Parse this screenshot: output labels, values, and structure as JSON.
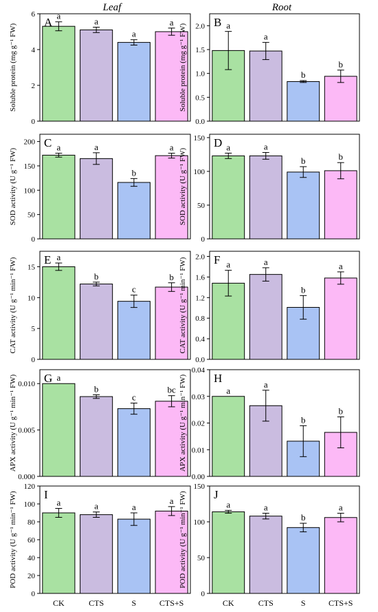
{
  "column_headers": [
    "Leaf",
    "Root"
  ],
  "categories": [
    "CK",
    "CTS",
    "S",
    "CTS+S"
  ],
  "bar_colors": [
    "#a9e1a2",
    "#cabce0",
    "#a9c3f4",
    "#fcb9f6"
  ],
  "chart_data": [
    {
      "type": "bar",
      "panel": "A",
      "ylabel": "Soluble protein (mg g⁻¹ FW)",
      "ylim": [
        0,
        6
      ],
      "yticks": [
        "0",
        "2",
        "4",
        "6"
      ],
      "categories": [
        "CK",
        "CTS",
        "S",
        "CTS+S"
      ],
      "values": [
        5.3,
        5.1,
        4.4,
        5.0
      ],
      "errors": [
        0.25,
        0.15,
        0.15,
        0.2
      ],
      "letters": [
        "a",
        "a",
        "a",
        "a"
      ]
    },
    {
      "type": "bar",
      "panel": "B",
      "ylabel": "Soluble protein (mg g⁻¹ FW)",
      "ylim": [
        0,
        2.25
      ],
      "yticks": [
        "0.0",
        "0.5",
        "1.0",
        "1.5",
        "2.0"
      ],
      "categories": [
        "CK",
        "CTS",
        "S",
        "CTS+S"
      ],
      "values": [
        1.48,
        1.47,
        0.83,
        0.94
      ],
      "errors": [
        0.4,
        0.18,
        0.02,
        0.13
      ],
      "letters": [
        "a",
        "a",
        "b",
        "b"
      ]
    },
    {
      "type": "bar",
      "panel": "C",
      "ylabel": "SOD activity (U g⁻¹ FW)",
      "ylim": [
        0,
        215
      ],
      "yticks": [
        "0",
        "50",
        "100",
        "150",
        "200"
      ],
      "categories": [
        "CK",
        "CTS",
        "S",
        "CTS+S"
      ],
      "values": [
        172,
        165,
        116,
        171
      ],
      "errors": [
        4,
        12,
        8,
        5
      ],
      "letters": [
        "a",
        "a",
        "b",
        "a"
      ]
    },
    {
      "type": "bar",
      "panel": "D",
      "ylabel": "SOD activity (U g⁻¹ FW)",
      "ylim": [
        0,
        155
      ],
      "yticks": [
        "0",
        "50",
        "100",
        "150"
      ],
      "categories": [
        "CK",
        "CTS",
        "S",
        "CTS+S"
      ],
      "values": [
        123,
        123,
        99,
        101
      ],
      "errors": [
        4,
        5,
        8,
        12
      ],
      "letters": [
        "a",
        "a",
        "b",
        "b"
      ]
    },
    {
      "type": "bar",
      "panel": "E",
      "ylabel": "CAT activity (U g⁻¹ min⁻¹ FW)",
      "ylim": [
        0,
        17.5
      ],
      "yticks": [
        "0",
        "5",
        "10",
        "15"
      ],
      "categories": [
        "CK",
        "CTS",
        "S",
        "CTS+S"
      ],
      "values": [
        15.0,
        12.2,
        9.4,
        11.7
      ],
      "errors": [
        0.6,
        0.3,
        1.0,
        0.7
      ],
      "letters": [
        "a",
        "b",
        "c",
        "b"
      ]
    },
    {
      "type": "bar",
      "panel": "F",
      "ylabel": "CAT activity (U g⁻¹ min⁻¹ FW)",
      "ylim": [
        0,
        2.1
      ],
      "yticks": [
        "0.0",
        "0.4",
        "0.8",
        "1.2",
        "1.6",
        "2.0"
      ],
      "categories": [
        "CK",
        "CTS",
        "S",
        "CTS+S"
      ],
      "values": [
        1.48,
        1.65,
        1.01,
        1.58
      ],
      "errors": [
        0.25,
        0.13,
        0.23,
        0.12
      ],
      "letters": [
        "a",
        "a",
        "b",
        "a"
      ]
    },
    {
      "type": "bar",
      "panel": "G",
      "ylabel": "APX activity (U g⁻¹ min⁻¹ FW)",
      "ylim": [
        0,
        0.0115
      ],
      "yticks": [
        "0.000",
        "0.005",
        "0.010"
      ],
      "categories": [
        "CK",
        "CTS",
        "S",
        "CTS+S"
      ],
      "values": [
        0.01,
        0.0086,
        0.0073,
        0.0081
      ],
      "errors": [
        0.0,
        0.0002,
        0.0006,
        0.0006
      ],
      "letters": [
        "a",
        "b",
        "c",
        "bc"
      ]
    },
    {
      "type": "bar",
      "panel": "H",
      "ylabel": "APX activity (U g⁻¹ min⁻¹ FW)",
      "ylim": [
        0,
        0.04
      ],
      "yticks": [
        "0.00",
        "0.01",
        "0.02",
        "0.03",
        "0.04"
      ],
      "categories": [
        "CK",
        "CTS",
        "S",
        "CTS+S"
      ],
      "values": [
        0.03,
        0.0265,
        0.0132,
        0.0165
      ],
      "errors": [
        0.0,
        0.0058,
        0.0058,
        0.0058
      ],
      "letters": [
        "a",
        "a",
        "b",
        "b"
      ]
    },
    {
      "type": "bar",
      "panel": "I",
      "ylabel": "POD activity (U g⁻¹ min⁻¹ FW)",
      "ylim": [
        0,
        120
      ],
      "yticks": [
        "0",
        "20",
        "40",
        "60",
        "80",
        "100",
        "120"
      ],
      "categories": [
        "CK",
        "CTS",
        "S",
        "CTS+S"
      ],
      "values": [
        90,
        88,
        83,
        92
      ],
      "errors": [
        5,
        3,
        7,
        5
      ],
      "letters": [
        "a",
        "a",
        "a",
        "a"
      ]
    },
    {
      "type": "bar",
      "panel": "J",
      "ylabel": "POD activity (U g⁻¹ min⁻¹ FW)",
      "ylim": [
        0,
        150
      ],
      "yticks": [
        "0",
        "50",
        "100",
        "150"
      ],
      "categories": [
        "CK",
        "CTS",
        "S",
        "CTS+S"
      ],
      "values": [
        114,
        108,
        92,
        106
      ],
      "errors": [
        2,
        4,
        6,
        6
      ],
      "letters": [
        "a",
        "a",
        "b",
        "a"
      ]
    }
  ]
}
